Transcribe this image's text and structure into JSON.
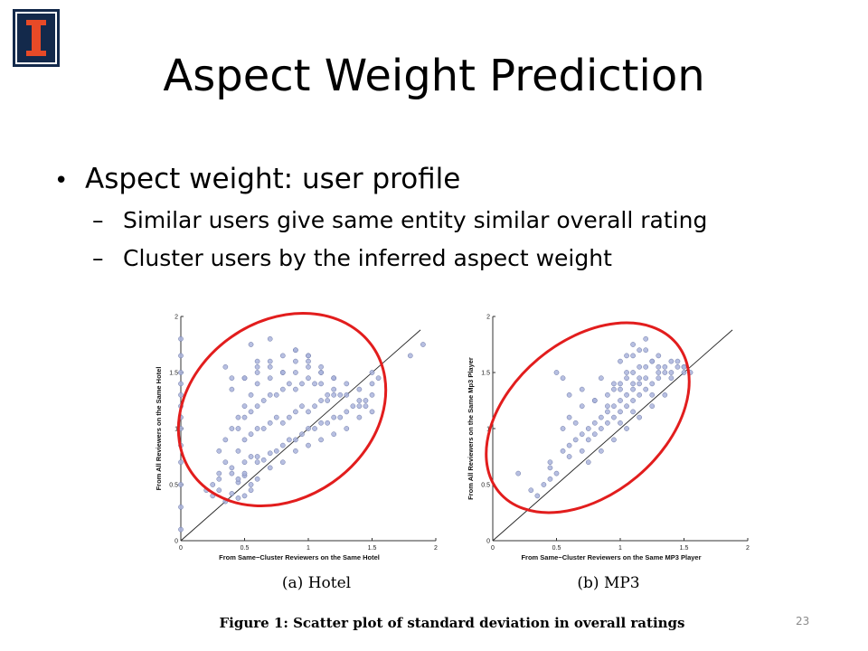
{
  "slide": {
    "title": "Aspect Weight Prediction",
    "number": "23",
    "bullet": "Aspect weight: user profile",
    "subbullets": [
      "Similar users give same entity similar overall rating",
      "Cluster users by the inferred aspect weight"
    ]
  },
  "figure": {
    "caption": "Figure 1:  Scatter plot of standard deviation in overall ratings",
    "colors": {
      "points": "#aab4dc",
      "point_edge": "#6b77a6",
      "ellipse": "#e21d1d",
      "logo_blue": "#13294b",
      "logo_orange": "#e84a27"
    },
    "panels": [
      {
        "subcaption": "(a)  Hotel",
        "xlabel": "From Same−Cluster Reviewers on the Same Hotel",
        "ylabel": "From All Reviewers on the Same Hotel"
      },
      {
        "subcaption": "(b)  MP3",
        "xlabel": "From Same−Cluster Reviewers on the Same MP3 Player",
        "ylabel": "From All Reviewers on the Same Mp3 Player"
      }
    ]
  },
  "chart_data": [
    {
      "type": "scatter",
      "xlabel": "From Same−Cluster Reviewers on the Same Hotel",
      "ylabel": "From All Reviewers on the Same Hotel",
      "subcaption": "(a)  Hotel",
      "xlim": [
        0,
        2
      ],
      "ylim": [
        0,
        2
      ],
      "x_ticks": [
        "0",
        "0.5",
        "1",
        "1.5",
        "2"
      ],
      "y_ticks": [
        "0",
        "0.5",
        "1",
        "1.5",
        "2"
      ],
      "reference_line": "y = x",
      "x": [
        0,
        0,
        0,
        0,
        0,
        0,
        0,
        0,
        0,
        0,
        0,
        0,
        0,
        0.2,
        0.25,
        0.3,
        0.35,
        0.4,
        0.45,
        0.5,
        0.55,
        0.25,
        0.3,
        0.4,
        0.45,
        0.5,
        0.35,
        0.45,
        0.55,
        0.6,
        0.65,
        0.7,
        0.75,
        0.8,
        0.85,
        0.9,
        0.95,
        1.0,
        1.05,
        1.1,
        1.15,
        1.2,
        1.25,
        1.3,
        1.35,
        1.4,
        1.45,
        1.5,
        0.5,
        0.55,
        0.6,
        0.65,
        0.7,
        0.75,
        0.8,
        0.85,
        0.9,
        0.95,
        1.0,
        1.05,
        1.1,
        1.15,
        1.2,
        0.45,
        0.5,
        0.55,
        0.6,
        0.65,
        0.7,
        0.75,
        0.8,
        0.85,
        0.9,
        0.95,
        1.0,
        1.05,
        1.1,
        1.15,
        1.2,
        1.25,
        1.3,
        0.3,
        0.35,
        0.4,
        0.45,
        0.5,
        0.55,
        0.6,
        0.7,
        0.8,
        0.9,
        1.0,
        1.1,
        1.2,
        1.3,
        1.4,
        0.3,
        0.4,
        0.5,
        0.6,
        0.7,
        0.8,
        0.9,
        1.0,
        1.1,
        1.2,
        1.3,
        1.4,
        1.5,
        0.4,
        0.5,
        0.6,
        0.7,
        0.8,
        0.9,
        1.0,
        1.1,
        1.2,
        0.5,
        0.6,
        0.7,
        0.8,
        0.9,
        1.0,
        1.1,
        0.55,
        0.6,
        0.7,
        0.9,
        1.0,
        1.2,
        0.45,
        0.5,
        0.55,
        0.6,
        0.35,
        0.4,
        1.5,
        1.55,
        1.8,
        1.9,
        1.4,
        1.5,
        1.45
      ],
      "y": [
        0.1,
        0.3,
        0.5,
        0.7,
        0.85,
        1.0,
        1.1,
        1.2,
        1.3,
        1.4,
        1.5,
        1.65,
        1.8,
        0.45,
        0.4,
        0.45,
        0.35,
        0.42,
        0.38,
        0.4,
        0.45,
        0.5,
        0.55,
        0.6,
        0.52,
        0.58,
        0.7,
        0.8,
        0.75,
        0.7,
        0.72,
        0.78,
        0.8,
        0.85,
        0.9,
        0.9,
        0.95,
        1.0,
        1.0,
        1.05,
        1.05,
        1.1,
        1.1,
        1.15,
        1.2,
        1.2,
        1.25,
        1.3,
        0.9,
        0.95,
        1.0,
        1.0,
        1.05,
        1.1,
        1.05,
        1.1,
        1.15,
        1.2,
        1.15,
        1.2,
        1.25,
        1.25,
        1.3,
        1.0,
        1.1,
        1.15,
        1.2,
        1.25,
        1.3,
        1.3,
        1.35,
        1.4,
        1.35,
        1.4,
        1.45,
        1.4,
        1.5,
        1.3,
        1.35,
        1.3,
        1.4,
        0.8,
        0.9,
        1.0,
        1.1,
        1.2,
        1.3,
        1.4,
        1.45,
        1.5,
        1.5,
        1.55,
        1.4,
        1.45,
        1.3,
        1.25,
        0.6,
        0.65,
        0.7,
        0.75,
        0.65,
        0.7,
        0.8,
        0.85,
        0.9,
        0.95,
        1.0,
        1.1,
        1.15,
        1.35,
        1.45,
        1.55,
        1.6,
        1.5,
        1.6,
        1.6,
        1.5,
        1.45,
        1.45,
        1.5,
        1.55,
        1.65,
        1.7,
        1.65,
        1.55,
        1.75,
        1.6,
        1.8,
        1.7,
        1.65,
        1.45,
        0.55,
        0.6,
        0.5,
        0.55,
        1.55,
        1.45,
        1.5,
        1.45,
        1.65,
        1.75,
        1.35,
        1.4,
        1.2
      ],
      "annotation": "red ellipse encircling the point cloud"
    },
    {
      "type": "scatter",
      "xlabel": "From Same−Cluster Reviewers on the Same MP3 Player",
      "ylabel": "From All Reviewers on the Same Mp3 Player",
      "subcaption": "(b)  MP3",
      "xlim": [
        0,
        2
      ],
      "ylim": [
        0,
        2
      ],
      "x_ticks": [
        "0",
        "0.5",
        "1",
        "1.5",
        "2"
      ],
      "y_ticks": [
        "0",
        "0.5",
        "1",
        "1.5",
        "2"
      ],
      "reference_line": "y = x",
      "x": [
        0.2,
        0.3,
        0.35,
        0.4,
        0.45,
        0.45,
        0.5,
        0.55,
        0.6,
        0.6,
        0.65,
        0.7,
        0.7,
        0.75,
        0.75,
        0.8,
        0.8,
        0.85,
        0.85,
        0.9,
        0.9,
        0.95,
        0.95,
        1.0,
        1.0,
        1.0,
        1.05,
        1.05,
        1.1,
        1.1,
        1.1,
        1.15,
        1.15,
        1.2,
        1.2,
        1.25,
        1.25,
        1.3,
        1.3,
        1.35,
        1.4,
        1.45,
        1.5,
        0.55,
        0.6,
        0.65,
        0.7,
        0.8,
        0.9,
        0.95,
        1.0,
        1.05,
        1.1,
        1.15,
        1.2,
        1.25,
        1.3,
        0.75,
        0.85,
        0.95,
        1.05,
        1.15,
        1.25,
        1.35,
        0.6,
        0.7,
        0.8,
        0.9,
        1.0,
        1.1,
        0.85,
        0.95,
        1.05,
        1.15,
        1.0,
        1.1,
        1.2,
        1.3,
        1.4,
        1.5,
        0.5,
        0.45,
        0.55,
        1.35,
        1.4,
        1.45,
        1.5,
        1.55,
        1.1,
        1.2,
        1.05,
        1.15,
        1.25
      ],
      "y": [
        0.6,
        0.45,
        0.4,
        0.5,
        0.55,
        0.65,
        0.6,
        0.8,
        0.75,
        0.85,
        0.9,
        0.8,
        0.95,
        1.0,
        0.9,
        1.05,
        0.95,
        1.1,
        1.0,
        1.15,
        1.05,
        1.2,
        1.1,
        1.25,
        1.15,
        1.05,
        1.3,
        1.2,
        1.35,
        1.25,
        1.15,
        1.4,
        1.3,
        1.45,
        1.35,
        1.4,
        1.3,
        1.5,
        1.45,
        1.55,
        1.5,
        1.55,
        1.5,
        1.0,
        1.1,
        1.05,
        1.2,
        1.25,
        1.3,
        1.35,
        1.4,
        1.45,
        1.5,
        1.45,
        1.55,
        1.6,
        1.55,
        0.7,
        0.8,
        0.9,
        1.0,
        1.1,
        1.2,
        1.3,
        1.3,
        1.35,
        1.25,
        1.2,
        1.35,
        1.4,
        1.45,
        1.4,
        1.5,
        1.55,
        1.6,
        1.65,
        1.7,
        1.65,
        1.6,
        1.55,
        1.5,
        0.7,
        1.45,
        1.5,
        1.45,
        1.6,
        1.55,
        1.5,
        1.75,
        1.8,
        1.65,
        1.7,
        1.6
      ],
      "annotation": "red ellipse encircling the point cloud"
    }
  ]
}
